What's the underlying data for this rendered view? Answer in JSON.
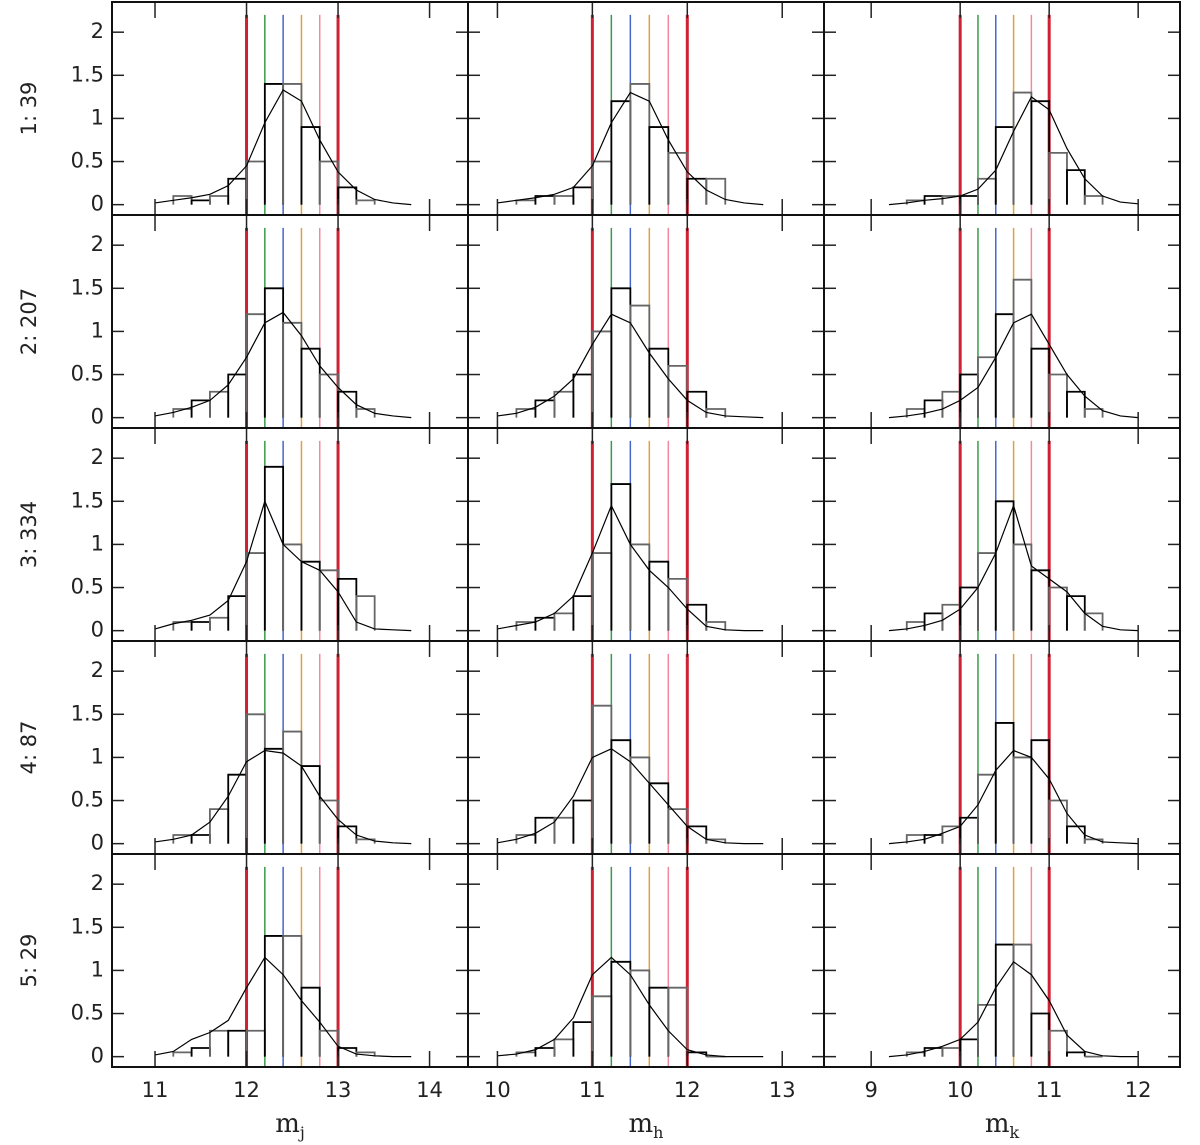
{
  "chart_data": {
    "type": "histogram",
    "ylim": [
      -0.12,
      2.35
    ],
    "yticks": [
      0,
      0.5,
      1,
      1.5,
      2
    ],
    "hist_color": "#666666",
    "curve_color": "#000000",
    "rows": [
      {
        "label": "1: 39"
      },
      {
        "label": "2: 207"
      },
      {
        "label": "3: 334"
      },
      {
        "label": "4: 87"
      },
      {
        "label": "5: 29"
      }
    ],
    "columns": [
      {
        "xlabel": "m",
        "xlabel_sub": "j",
        "xlim": [
          10.53,
          14.42
        ],
        "xticks": [
          11,
          12,
          13,
          14
        ],
        "bins": [
          11.2,
          11.4,
          11.6,
          11.8,
          12.0,
          12.2,
          12.4,
          12.6,
          12.8,
          13.0,
          13.2,
          13.4
        ],
        "curve_x": [
          11.0,
          11.2,
          11.4,
          11.6,
          11.8,
          12.0,
          12.2,
          12.4,
          12.6,
          12.8,
          13.0,
          13.2,
          13.4,
          13.6,
          13.8
        ],
        "vlines": [
          {
            "value": 12,
            "color": "#cc2233",
            "width": 3
          },
          {
            "value": 12.2,
            "color": "#3a9a4a",
            "width": 1.5
          },
          {
            "value": 12.4,
            "color": "#4466cc",
            "width": 1.5
          },
          {
            "value": 12.6,
            "color": "#e0a040",
            "width": 1.5
          },
          {
            "value": 12.8,
            "color": "#f08aa0",
            "width": 1.5
          },
          {
            "value": 13,
            "color": "#cc2233",
            "width": 3
          }
        ]
      },
      {
        "xlabel": "m",
        "xlabel_sub": "h",
        "xlim": [
          9.69,
          13.44
        ],
        "xticks": [
          10,
          11,
          12,
          13
        ],
        "bins": [
          10.2,
          10.4,
          10.6,
          10.8,
          11.0,
          11.2,
          11.4,
          11.6,
          11.8,
          12.0,
          12.2,
          12.4
        ],
        "curve_x": [
          10.0,
          10.2,
          10.4,
          10.6,
          10.8,
          11.0,
          11.2,
          11.4,
          11.6,
          11.8,
          12.0,
          12.2,
          12.4,
          12.6,
          12.8
        ],
        "vlines": [
          {
            "value": 11,
            "color": "#cc2233",
            "width": 3
          },
          {
            "value": 11.2,
            "color": "#3a9a4a",
            "width": 1.5
          },
          {
            "value": 11.4,
            "color": "#4466cc",
            "width": 1.5
          },
          {
            "value": 11.6,
            "color": "#e0a040",
            "width": 1.5
          },
          {
            "value": 11.8,
            "color": "#f08aa0",
            "width": 1.5
          },
          {
            "value": 12,
            "color": "#cc2233",
            "width": 3
          }
        ]
      },
      {
        "xlabel": "m",
        "xlabel_sub": "k",
        "xlim": [
          8.47,
          12.47
        ],
        "xticks": [
          9,
          10,
          11,
          12
        ],
        "bins": [
          9.4,
          9.6,
          9.8,
          10.0,
          10.2,
          10.4,
          10.6,
          10.8,
          11.0,
          11.2,
          11.4,
          11.6
        ],
        "curve_x": [
          9.2,
          9.4,
          9.6,
          9.8,
          10.0,
          10.2,
          10.4,
          10.6,
          10.8,
          11.0,
          11.2,
          11.4,
          11.6,
          11.8,
          12.0
        ],
        "vlines": [
          {
            "value": 10,
            "color": "#cc2233",
            "width": 3
          },
          {
            "value": 10.2,
            "color": "#3a9a4a",
            "width": 1.5
          },
          {
            "value": 10.4,
            "color": "#4466cc",
            "width": 1.5
          },
          {
            "value": 10.6,
            "color": "#e0a040",
            "width": 1.5
          },
          {
            "value": 10.8,
            "color": "#f08aa0",
            "width": 1.5
          },
          {
            "value": 11,
            "color": "#cc2233",
            "width": 3
          }
        ]
      }
    ],
    "panels": [
      [
        {
          "counts": [
            0.1,
            0.05,
            0.1,
            0.3,
            0.5,
            1.4,
            1.4,
            0.9,
            0.5,
            0.2,
            0.05
          ],
          "curve_y": [
            0.02,
            0.05,
            0.08,
            0.12,
            0.22,
            0.45,
            0.95,
            1.33,
            1.2,
            0.75,
            0.38,
            0.17,
            0.06,
            0.02,
            0
          ]
        },
        {
          "counts": [
            0.05,
            0.1,
            0.1,
            0.2,
            0.5,
            1.2,
            1.4,
            0.9,
            0.6,
            0.3,
            0.3
          ],
          "curve_y": [
            0.02,
            0.05,
            0.08,
            0.12,
            0.2,
            0.45,
            0.95,
            1.3,
            1.2,
            0.75,
            0.38,
            0.17,
            0.06,
            0.02,
            0
          ]
        },
        {
          "counts": [
            0.05,
            0.1,
            0.1,
            0.1,
            0.3,
            0.9,
            1.3,
            1.2,
            0.6,
            0.4,
            0.1
          ],
          "curve_y": [
            0,
            0.02,
            0.05,
            0.07,
            0.1,
            0.18,
            0.4,
            0.85,
            1.25,
            1.1,
            0.65,
            0.3,
            0.1,
            0.03,
            0.01
          ]
        }
      ],
      [
        {
          "counts": [
            0.1,
            0.2,
            0.3,
            0.5,
            1.2,
            1.5,
            1.1,
            0.8,
            0.5,
            0.3,
            0.1
          ],
          "curve_y": [
            0.02,
            0.06,
            0.12,
            0.2,
            0.38,
            0.7,
            1.1,
            1.22,
            0.95,
            0.6,
            0.35,
            0.15,
            0.05,
            0.02,
            0
          ]
        },
        {
          "counts": [
            0.1,
            0.2,
            0.3,
            0.5,
            1.0,
            1.5,
            1.3,
            0.8,
            0.6,
            0.3,
            0.1
          ],
          "curve_y": [
            0.02,
            0.05,
            0.12,
            0.25,
            0.45,
            0.85,
            1.2,
            1.1,
            0.75,
            0.45,
            0.2,
            0.06,
            0.02,
            0.01,
            0
          ]
        },
        {
          "counts": [
            0.1,
            0.2,
            0.3,
            0.5,
            0.7,
            1.2,
            1.6,
            0.8,
            0.5,
            0.3,
            0.1
          ],
          "curve_y": [
            0,
            0.02,
            0.05,
            0.1,
            0.2,
            0.35,
            0.7,
            1.1,
            1.2,
            0.85,
            0.5,
            0.25,
            0.08,
            0.02,
            0
          ]
        }
      ],
      [
        {
          "counts": [
            0.1,
            0.1,
            0.15,
            0.4,
            0.9,
            1.9,
            1.0,
            0.8,
            0.7,
            0.6,
            0.4
          ],
          "curve_y": [
            0.02,
            0.08,
            0.12,
            0.18,
            0.35,
            0.8,
            1.5,
            1.0,
            0.8,
            0.7,
            0.45,
            0.1,
            0.02,
            0.01,
            0
          ]
        },
        {
          "counts": [
            0.1,
            0.15,
            0.2,
            0.4,
            0.9,
            1.7,
            1.0,
            0.8,
            0.6,
            0.3,
            0.1
          ],
          "curve_y": [
            0.02,
            0.06,
            0.1,
            0.2,
            0.4,
            0.9,
            1.45,
            1.0,
            0.7,
            0.5,
            0.25,
            0.05,
            0.01,
            0,
            0
          ]
        },
        {
          "counts": [
            0.1,
            0.2,
            0.3,
            0.5,
            0.9,
            1.5,
            1.0,
            0.7,
            0.5,
            0.4,
            0.2
          ],
          "curve_y": [
            0,
            0.02,
            0.06,
            0.12,
            0.25,
            0.5,
            0.9,
            1.45,
            0.75,
            0.6,
            0.45,
            0.2,
            0.05,
            0.01,
            0
          ]
        }
      ],
      [
        {
          "counts": [
            0.1,
            0.1,
            0.4,
            0.8,
            1.5,
            1.1,
            1.3,
            0.9,
            0.5,
            0.2,
            0.05
          ],
          "curve_y": [
            0.02,
            0.05,
            0.1,
            0.25,
            0.55,
            0.95,
            1.08,
            1.05,
            0.9,
            0.55,
            0.28,
            0.1,
            0.03,
            0.01,
            0
          ]
        },
        {
          "counts": [
            0.1,
            0.3,
            0.3,
            0.5,
            1.6,
            1.2,
            1.0,
            0.7,
            0.4,
            0.2,
            0.05
          ],
          "curve_y": [
            0.01,
            0.05,
            0.12,
            0.25,
            0.55,
            1.0,
            1.1,
            0.95,
            0.7,
            0.45,
            0.2,
            0.05,
            0.01,
            0,
            0
          ]
        },
        {
          "counts": [
            0.1,
            0.1,
            0.2,
            0.3,
            0.8,
            1.4,
            1.0,
            1.2,
            0.5,
            0.2,
            0.05
          ],
          "curve_y": [
            0,
            0.02,
            0.05,
            0.12,
            0.2,
            0.45,
            0.85,
            1.08,
            1.0,
            0.75,
            0.35,
            0.1,
            0.02,
            0.01,
            0
          ]
        }
      ],
      [
        {
          "counts": [
            0.05,
            0.1,
            0.3,
            0.3,
            0.3,
            1.4,
            1.4,
            0.8,
            0.3,
            0.1,
            0.05
          ],
          "curve_y": [
            0.02,
            0.06,
            0.2,
            0.28,
            0.42,
            0.8,
            1.15,
            0.95,
            0.65,
            0.4,
            0.12,
            0.03,
            0.01,
            0,
            0
          ]
        },
        {
          "counts": [
            0.05,
            0.1,
            0.2,
            0.4,
            0.7,
            1.1,
            1.0,
            0.8,
            0.8,
            0.05,
            0
          ],
          "curve_y": [
            0.01,
            0.03,
            0.08,
            0.2,
            0.45,
            0.95,
            1.15,
            0.95,
            0.6,
            0.3,
            0.08,
            0.02,
            0,
            0,
            0
          ]
        },
        {
          "counts": [
            0.05,
            0.1,
            0.1,
            0.2,
            0.6,
            1.3,
            1.3,
            0.5,
            0.3,
            0.05,
            0
          ],
          "curve_y": [
            0,
            0.02,
            0.06,
            0.12,
            0.2,
            0.4,
            0.8,
            1.1,
            0.95,
            0.65,
            0.25,
            0.06,
            0.01,
            0,
            0
          ]
        }
      ]
    ]
  }
}
